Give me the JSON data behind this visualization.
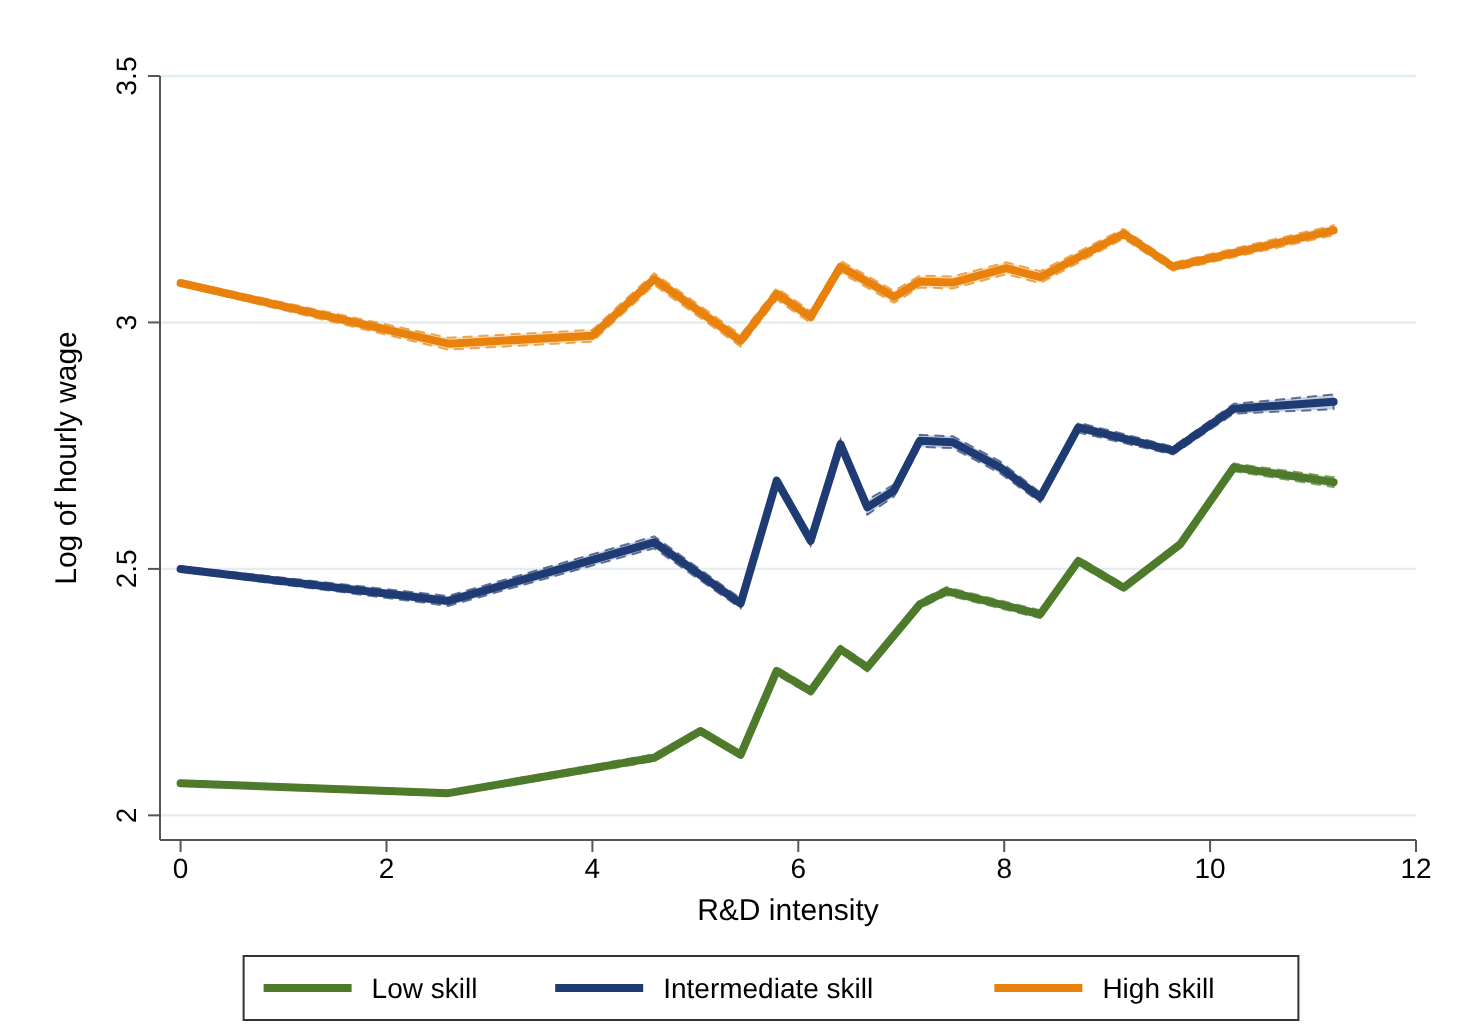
{
  "chart_data": {
    "type": "line",
    "xlabel": "R&D intensity",
    "ylabel": "Log of hourly wage",
    "xlim": [
      -0.2,
      12
    ],
    "xticks": [
      0,
      2,
      4,
      6,
      8,
      10,
      12
    ],
    "ylim": [
      1.95,
      3.5
    ],
    "yticks": [
      2,
      2.5,
      3,
      3.5
    ],
    "grid": "y",
    "legend": "bottom",
    "line_style": "solid",
    "marker": "none",
    "series": [
      {
        "name": "Low skill",
        "color": "#4e7a2c",
        "x": [
          0,
          2.6,
          4.6,
          5.05,
          5.44,
          5.79,
          6.12,
          6.41,
          6.67,
          7.18,
          7.44,
          8.35,
          8.72,
          9.16,
          9.71,
          10.23,
          11.2
        ],
        "values": [
          2.065,
          2.045,
          2.117,
          2.171,
          2.123,
          2.293,
          2.252,
          2.337,
          2.3,
          2.428,
          2.455,
          2.408,
          2.516,
          2.462,
          2.55,
          2.706,
          2.676
        ],
        "lower": [
          2.06,
          2.04,
          2.11,
          2.165,
          2.117,
          2.285,
          2.245,
          2.33,
          2.292,
          2.42,
          2.447,
          2.4,
          2.508,
          2.455,
          2.543,
          2.698,
          2.666
        ],
        "upper": [
          2.07,
          2.05,
          2.124,
          2.177,
          2.129,
          2.301,
          2.259,
          2.344,
          2.308,
          2.436,
          2.463,
          2.416,
          2.524,
          2.469,
          2.557,
          2.714,
          2.686
        ]
      },
      {
        "name": "Intermediate skill",
        "color": "#1f3b73",
        "x": [
          0,
          2.6,
          4.6,
          5.44,
          5.79,
          6.12,
          6.41,
          6.67,
          6.93,
          7.18,
          7.5,
          7.96,
          8.35,
          8.72,
          9.64,
          10.23,
          11.2
        ],
        "values": [
          2.5,
          2.435,
          2.554,
          2.43,
          2.679,
          2.557,
          2.753,
          2.625,
          2.659,
          2.76,
          2.757,
          2.706,
          2.645,
          2.787,
          2.74,
          2.825,
          2.839
        ],
        "lower": [
          2.495,
          2.425,
          2.542,
          2.42,
          2.669,
          2.547,
          2.743,
          2.61,
          2.647,
          2.748,
          2.745,
          2.694,
          2.635,
          2.777,
          2.732,
          2.815,
          2.824
        ],
        "upper": [
          2.505,
          2.445,
          2.566,
          2.44,
          2.689,
          2.567,
          2.763,
          2.64,
          2.671,
          2.772,
          2.769,
          2.718,
          2.655,
          2.797,
          2.748,
          2.835,
          2.854
        ]
      },
      {
        "name": "High skill",
        "color": "#e8820c",
        "x": [
          0,
          2.6,
          4.0,
          4.6,
          5.44,
          5.79,
          6.12,
          6.41,
          6.93,
          7.18,
          7.5,
          8.02,
          8.35,
          9.16,
          9.64,
          11.2
        ],
        "values": [
          3.08,
          2.957,
          2.973,
          3.088,
          2.963,
          3.058,
          3.011,
          3.113,
          3.052,
          3.083,
          3.081,
          3.11,
          3.092,
          3.18,
          3.113,
          3.187
        ],
        "lower": [
          3.075,
          2.945,
          2.961,
          3.076,
          2.951,
          3.046,
          2.999,
          3.101,
          3.04,
          3.071,
          3.069,
          3.098,
          3.08,
          3.17,
          3.105,
          3.177
        ],
        "upper": [
          3.085,
          2.969,
          2.985,
          3.1,
          2.975,
          3.07,
          3.023,
          3.125,
          3.064,
          3.095,
          3.093,
          3.122,
          3.104,
          3.19,
          3.121,
          3.197
        ]
      }
    ]
  }
}
